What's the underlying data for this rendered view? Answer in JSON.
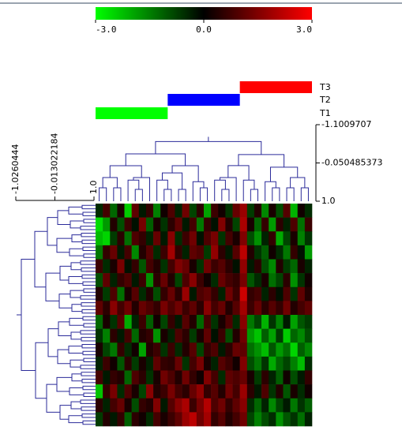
{
  "chart_data": {
    "type": "heatmap",
    "colorscale": {
      "colors": [
        "#00ff00",
        "#000000",
        "#ff0000"
      ],
      "lim": [
        -3,
        3
      ],
      "ticks": [
        {
          "value": -3,
          "label": "-3.0"
        },
        {
          "value": 0,
          "label": "0.0"
        },
        {
          "value": 3,
          "label": "3.0"
        }
      ]
    },
    "groups": [
      {
        "name": "T1",
        "color": "#00ff00",
        "columns": 10
      },
      {
        "name": "T2",
        "color": "#0000ff",
        "columns": 10
      },
      {
        "name": "T3",
        "color": "#ff0000",
        "columns": 10
      }
    ],
    "col_tree_axis": {
      "lim": [
        -1.1009707,
        1
      ],
      "ticks": [
        -1.1009707,
        -0.050485373,
        {
          "value": 1,
          "label": "1.0"
        }
      ]
    },
    "row_tree_axis": {
      "lim": [
        -1.0260444,
        1
      ],
      "ticks": [
        -1.0260444,
        -0.013022184,
        {
          "value": 1,
          "label": "1.0"
        }
      ]
    },
    "values": [
      [
        -0.5,
        0.8,
        -1.2,
        0.3,
        -2.4,
        1.1,
        -0.3,
        0.6,
        -1.5,
        0.2,
        0.9,
        -0.4,
        1.3,
        -0.8,
        0.5,
        -1.9,
        0.7,
        0.2,
        -0.6,
        1.2,
        1.8,
        -0.7,
        0.4,
        -1.6,
        0.3,
        -0.9,
        1.0,
        -2.1,
        0.2,
        -0.5
      ],
      [
        -2.6,
        -1.8,
        0.4,
        -0.9,
        0.7,
        -0.2,
        1.4,
        -1.1,
        0.3,
        -0.6,
        0.5,
        1.1,
        -0.3,
        0.8,
        -1.4,
        0.6,
        -0.2,
        1.5,
        0.4,
        -0.8,
        2.0,
        0.3,
        -1.2,
        0.6,
        -1.8,
        0.5,
        -0.4,
        0.9,
        -1.3,
        0.7
      ],
      [
        -2.2,
        -2.5,
        -0.7,
        0.5,
        -1.3,
        0.9,
        0.6,
        -0.4,
        1.2,
        -0.3,
        1.6,
        -0.5,
        0.7,
        1.3,
        -0.2,
        0.9,
        1.4,
        -0.6,
        0.8,
        0.3,
        1.5,
        -0.9,
        -1.7,
        -0.4,
        0.6,
        -2.0,
        -0.8,
        0.3,
        -1.5,
        -0.6
      ],
      [
        -1.4,
        0.6,
        1.2,
        -0.3,
        0.8,
        -1.6,
        0.4,
        1.0,
        -0.5,
        0.7,
        1.9,
        0.6,
        -0.4,
        1.1,
        0.9,
        -0.7,
        1.7,
        0.5,
        -0.3,
        1.0,
        2.2,
        0.4,
        -0.6,
        -1.1,
        0.2,
        -0.5,
        -1.4,
        0.6,
        -0.2,
        -1.8
      ],
      [
        0.7,
        -0.5,
        0.3,
        1.4,
        -0.2,
        0.6,
        -1.0,
        0.8,
        0.4,
        -0.6,
        0.8,
        1.5,
        1.2,
        0.3,
        -0.6,
        1.3,
        0.7,
        1.0,
        0.5,
        -0.2,
        1.7,
        -0.3,
        0.5,
        -0.9,
        -1.6,
        0.4,
        -0.7,
        -1.2,
        0.3,
        -0.4
      ],
      [
        -0.9,
        1.1,
        -0.4,
        0.6,
        0.9,
        -0.3,
        0.7,
        -1.7,
        0.5,
        1.2,
        0.4,
        -0.8,
        0.9,
        1.6,
        0.7,
        0.2,
        -0.5,
        1.2,
        0.8,
        0.6,
        1.4,
        -1.0,
        -0.5,
        0.3,
        -1.3,
        -0.8,
        0.5,
        -1.7,
        -0.6,
        0.2
      ],
      [
        0.4,
        -0.7,
        0.9,
        -1.3,
        0.3,
        1.0,
        -0.5,
        0.4,
        -0.9,
        0.6,
        1.2,
        0.5,
        1.8,
        -0.3,
        0.9,
        1.1,
        0.6,
        -0.4,
        1.3,
        0.7,
        2.4,
        0.6,
        0.8,
        -0.4,
        0.5,
        -0.2,
        0.9,
        -0.6,
        1.1,
        0.4
      ],
      [
        1.1,
        0.5,
        1.6,
        0.8,
        1.3,
        0.4,
        1.2,
        0.9,
        0.6,
        1.4,
        0.9,
        1.3,
        0.7,
        1.1,
        0.5,
        1.6,
        0.8,
        1.2,
        0.4,
        1.0,
        1.9,
        0.7,
        1.2,
        0.5,
        1.0,
        0.6,
        1.3,
        0.4,
        0.8,
        1.1
      ],
      [
        -1.2,
        0.3,
        -0.6,
        1.0,
        -2.0,
        -0.4,
        0.7,
        -1.1,
        0.2,
        -0.8,
        0.6,
        -0.3,
        1.0,
        0.4,
        -1.2,
        0.8,
        -0.6,
        0.3,
        0.9,
        -0.5,
        1.6,
        -1.4,
        -0.8,
        -2.1,
        -0.6,
        -1.5,
        -0.3,
        -1.9,
        -1.0,
        -0.7
      ],
      [
        -0.6,
        -1.5,
        0.5,
        -0.3,
        0.8,
        -1.2,
        0.4,
        0.6,
        -1.7,
        0.3,
        -0.4,
        0.9,
        0.5,
        -0.7,
        0.3,
        1.1,
        -0.2,
        0.7,
        -0.9,
        0.4,
        1.3,
        -1.8,
        -2.3,
        -1.1,
        -1.9,
        -0.7,
        -2.4,
        -1.2,
        -1.6,
        -0.9
      ],
      [
        0.3,
        -0.8,
        -1.4,
        0.6,
        -0.5,
        0.2,
        -1.9,
        0.4,
        0.7,
        -0.6,
        0.7,
        -0.5,
        0.4,
        1.0,
        -0.8,
        0.6,
        0.9,
        -0.3,
        0.5,
        1.2,
        1.1,
        -1.3,
        -1.7,
        -2.2,
        -1.0,
        -1.8,
        -1.3,
        -2.5,
        -1.1,
        -1.6
      ],
      [
        -0.4,
        0.7,
        0.2,
        -1.0,
        0.5,
        -0.7,
        0.3,
        -0.4,
        1.1,
        0.6,
        0.5,
        1.2,
        -0.6,
        0.8,
        1.4,
        0.3,
        -0.4,
        1.0,
        0.7,
        0.2,
        1.5,
        -0.9,
        -1.4,
        -0.6,
        -2.0,
        -1.2,
        -0.8,
        -1.5,
        -2.2,
        -0.5
      ],
      [
        0.8,
        -0.3,
        0.6,
        0.4,
        -1.2,
        0.9,
        0.5,
        -0.6,
        0.3,
        1.3,
        0.9,
        0.4,
        1.3,
        0.6,
        0.2,
        1.5,
        0.8,
        -0.5,
        1.1,
        0.9,
        1.2,
        0.3,
        -0.7,
        0.5,
        -0.4,
        -1.1,
        0.2,
        -0.9,
        -0.3,
        0.6
      ],
      [
        -2.3,
        0.6,
        1.4,
        -0.5,
        0.9,
        0.3,
        -0.8,
        1.6,
        0.4,
        0.7,
        1.4,
        0.8,
        0.5,
        1.2,
        1.7,
        0.6,
        1.0,
        0.4,
        1.3,
        0.8,
        1.8,
        0.5,
        -0.3,
        0.9,
        -0.6,
        0.4,
        -1.0,
        0.3,
        -0.5,
        0.2
      ],
      [
        0.5,
        -0.4,
        0.8,
        1.2,
        0.3,
        -0.9,
        0.6,
        0.4,
        1.5,
        -0.3,
        1.0,
        1.6,
        2.0,
        0.7,
        1.4,
        2.1,
        0.9,
        1.3,
        0.6,
        1.1,
        1.6,
        -0.5,
        -1.2,
        -0.4,
        -1.6,
        -0.8,
        -0.3,
        -1.4,
        -0.6,
        -1.1
      ],
      [
        -0.7,
        0.4,
        -0.3,
        0.6,
        -1.1,
        0.5,
        0.2,
        -0.5,
        0.8,
        0.3,
        0.7,
        1.1,
        1.8,
        2.2,
        1.3,
        1.9,
        0.6,
        1.0,
        0.4,
        0.8,
        1.3,
        -0.8,
        -1.5,
        -0.9,
        -0.5,
        -1.7,
        -1.0,
        -0.6,
        -1.3,
        -0.4
      ]
    ]
  }
}
